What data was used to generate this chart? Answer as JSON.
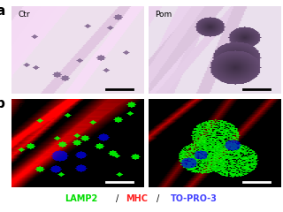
{
  "background_color": "#ffffff",
  "panel_label_a": "a",
  "panel_label_b": "b",
  "ctr_label": "Ctr",
  "pom_label": "Pom",
  "legend_lamp2": "LAMP2",
  "legend_mhc": "MHC",
  "legend_topro": "TO-PRO-3",
  "legend_lamp2_color": "#00dd00",
  "legend_mhc_color": "#ff2222",
  "legend_topro_color": "#4444ff",
  "scale_bar_color_he": "#000000",
  "scale_bar_color_fluor": "#ffffff"
}
